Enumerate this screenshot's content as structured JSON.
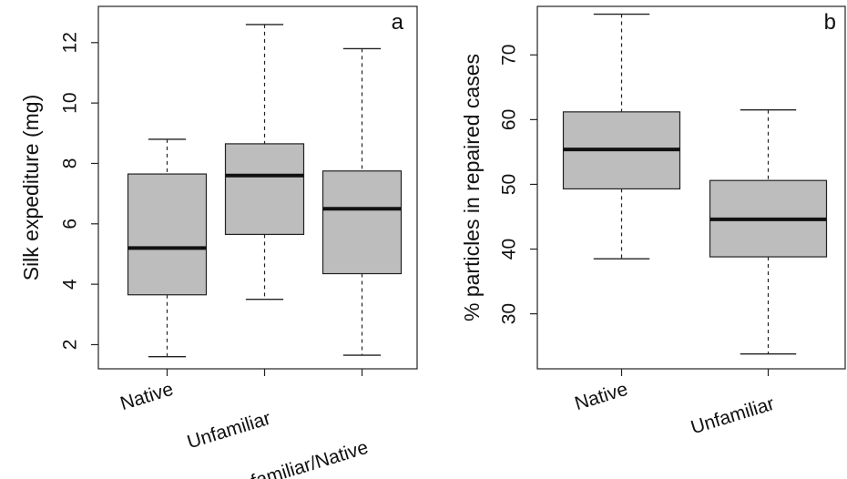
{
  "chart_data": [
    {
      "type": "box",
      "panel": "a",
      "ylabel": "Silk expediture (mg)",
      "ylim": [
        1.2,
        13.2
      ],
      "yticks": [
        2,
        4,
        6,
        8,
        10,
        12
      ],
      "grid": false,
      "categories": [
        "Native",
        "Unfamiliar",
        "Unfamiliar/Native"
      ],
      "boxes": [
        {
          "min": 1.6,
          "q1": 3.65,
          "median": 5.2,
          "q3": 7.65,
          "max": 8.8
        },
        {
          "min": 3.5,
          "q1": 5.65,
          "median": 7.6,
          "q3": 8.65,
          "max": 12.6
        },
        {
          "min": 1.65,
          "q1": 4.35,
          "median": 6.5,
          "q3": 7.75,
          "max": 11.8
        }
      ],
      "box_color": "#bdbdbd"
    },
    {
      "type": "box",
      "panel": "b",
      "ylabel": "% particles in repaired cases",
      "ylim": [
        21.5,
        77.5
      ],
      "yticks": [
        30,
        40,
        50,
        60,
        70
      ],
      "grid": false,
      "categories": [
        "Native",
        "Unfamiliar"
      ],
      "boxes": [
        {
          "min": 38.5,
          "q1": 49.3,
          "median": 55.4,
          "q3": 61.2,
          "max": 76.3
        },
        {
          "min": 23.8,
          "q1": 38.8,
          "median": 44.6,
          "q3": 50.6,
          "max": 61.5
        }
      ],
      "box_color": "#bdbdbd"
    }
  ]
}
